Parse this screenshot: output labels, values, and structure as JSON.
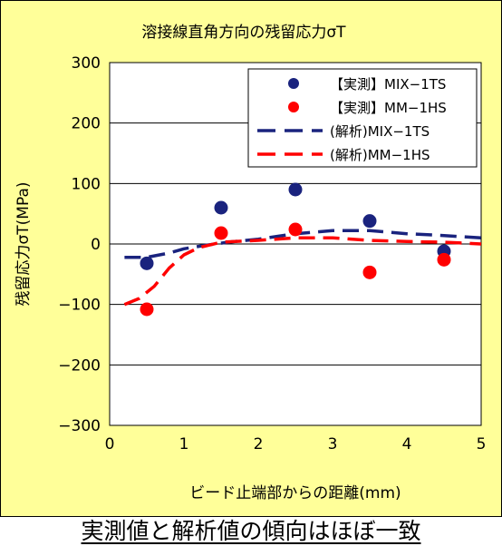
{
  "chart_data": {
    "type": "scatter",
    "title": "溶接線直角方向の残留応力σT",
    "xlabel": "ビード止端部からの距離(mm)",
    "ylabel": "残留応力σT(MPa)",
    "xlim": [
      0,
      5
    ],
    "ylim": [
      -300,
      300
    ],
    "xticks": [
      "0",
      "1",
      "2",
      "3",
      "4",
      "5"
    ],
    "yticks": [
      "300",
      "200",
      "100",
      "0",
      "−100",
      "−200",
      "−300"
    ],
    "grid": "horizontal",
    "legend_position": "top-right",
    "series": [
      {
        "name": "【実測】MIX−1TS",
        "kind": "points",
        "color": "#1a237e",
        "x": [
          0.5,
          1.5,
          2.5,
          3.5,
          4.5
        ],
        "y": [
          -32,
          60,
          90,
          38,
          -12
        ]
      },
      {
        "name": "【実測】MM−1HS",
        "kind": "points",
        "color": "#ff0000",
        "x": [
          0.5,
          1.5,
          2.5,
          3.5,
          4.5
        ],
        "y": [
          -108,
          18,
          24,
          -47,
          -26
        ]
      },
      {
        "name": "(解析)MIX−1TS",
        "kind": "dashed-line",
        "color": "#1a237e",
        "x": [
          0.2,
          0.5,
          0.8,
          1.0,
          1.3,
          1.6,
          2.0,
          2.5,
          3.0,
          3.5,
          4.0,
          4.5,
          5.0
        ],
        "y": [
          -22,
          -22,
          -15,
          -8,
          -2,
          3,
          8,
          17,
          22,
          22,
          17,
          14,
          10
        ]
      },
      {
        "name": "(解析)MM−1HS",
        "kind": "dashed-line",
        "color": "#ff0000",
        "x": [
          0.2,
          0.4,
          0.6,
          0.8,
          1.0,
          1.2,
          1.5,
          2.0,
          2.5,
          3.0,
          3.5,
          4.0,
          4.5,
          5.0
        ],
        "y": [
          -100,
          -90,
          -70,
          -40,
          -18,
          -6,
          3,
          6,
          10,
          10,
          6,
          4,
          3,
          0
        ]
      }
    ]
  },
  "caption": "実測値と解析値の傾向はほぼ一致"
}
